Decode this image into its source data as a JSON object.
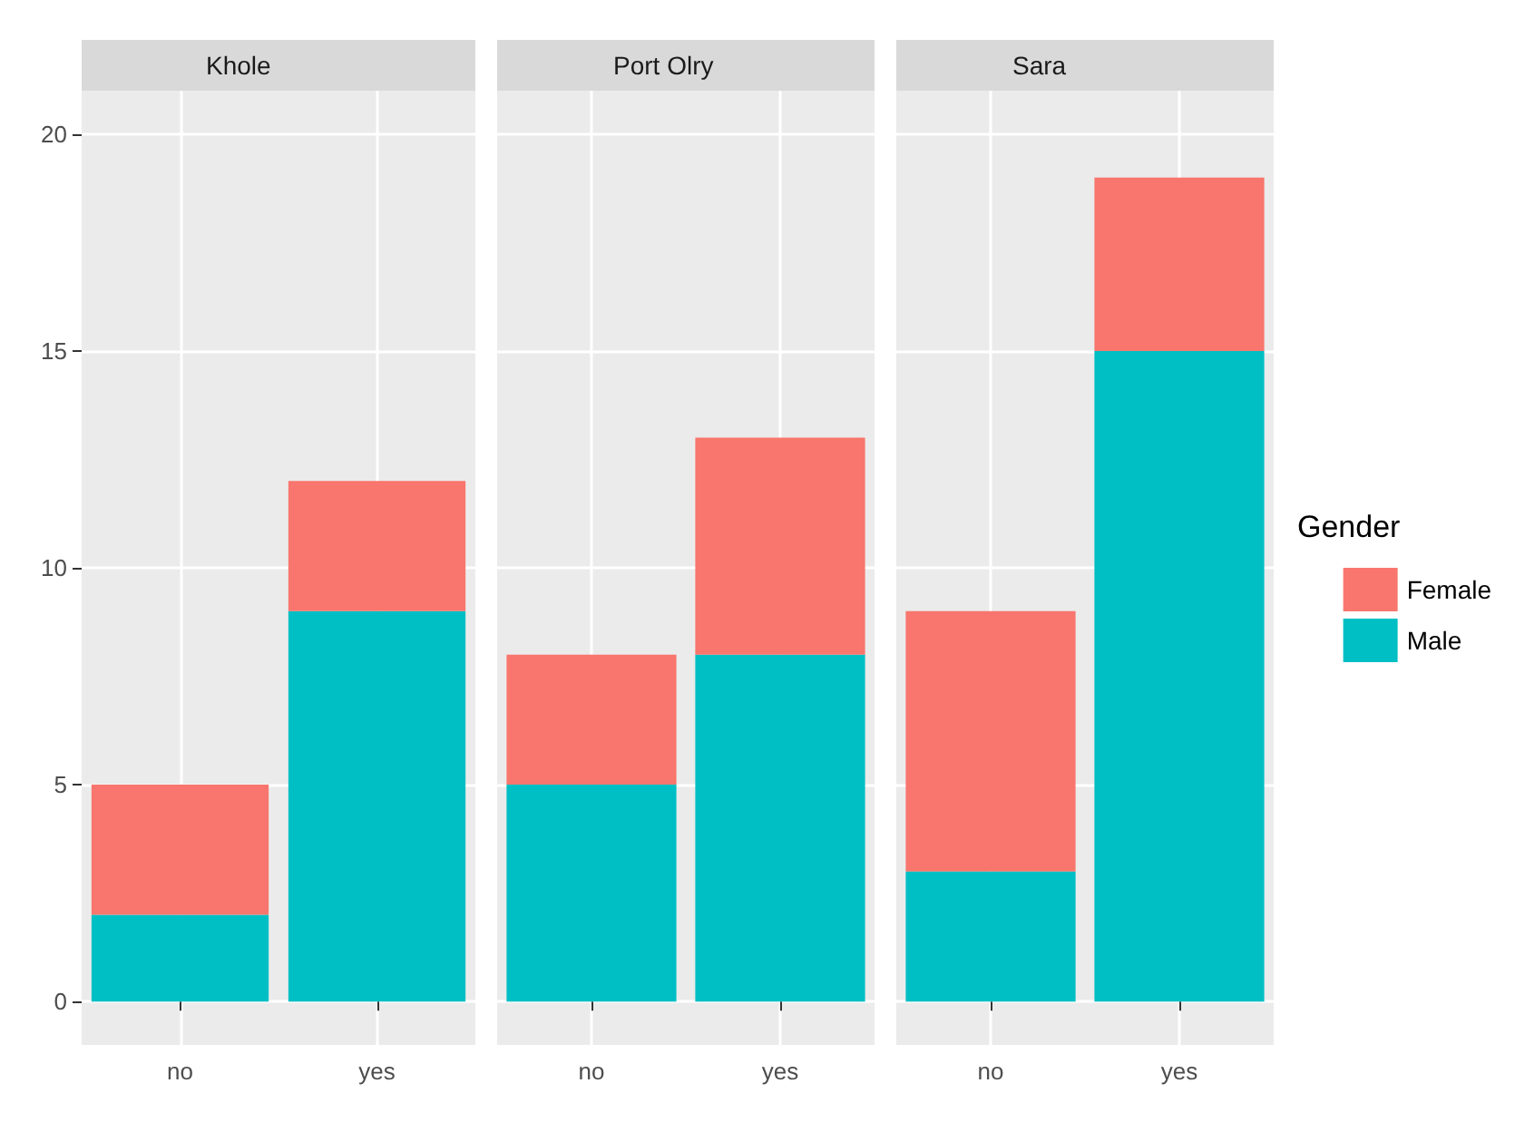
{
  "chart_data": [
    {
      "type": "bar",
      "title": "Khole",
      "categories": [
        "no",
        "yes"
      ],
      "stacked": true,
      "ylim": [
        -1,
        21
      ],
      "yticks": [
        0,
        5,
        10,
        15,
        20
      ],
      "grid": true,
      "legend": false,
      "series": [
        {
          "color": "#00bfc4",
          "values": [
            2,
            9
          ]
        },
        {
          "color": "#f8766d",
          "values": [
            3,
            3
          ]
        }
      ]
    },
    {
      "type": "bar",
      "title": "Port Olry",
      "categories": [
        "no",
        "yes"
      ],
      "stacked": true,
      "ylim": [
        -1,
        21
      ],
      "yticks": [
        0,
        5,
        10,
        15,
        20
      ],
      "grid": true,
      "legend": false,
      "tick_labels": "x",
      "series": [
        {
          "color": "#00bfc4",
          "values": [
            5,
            8
          ]
        },
        {
          "color": "#f8766d",
          "values": [
            3,
            5
          ]
        }
      ]
    },
    {
      "type": "bar",
      "title": "Sara",
      "categories": [
        "no",
        "yes"
      ],
      "stacked": true,
      "ylim": [
        -1,
        21
      ],
      "yticks": [
        0,
        5,
        10,
        15,
        20
      ],
      "grid": true,
      "legend": "right",
      "legend_title": "Gender",
      "tick_labels": "x",
      "series": [
        {
          "name": "Male",
          "color": "#00bfc4",
          "values": [
            3,
            15
          ]
        },
        {
          "name": "Female",
          "color": "#f8766d",
          "values": [
            6,
            4
          ]
        }
      ]
    }
  ]
}
